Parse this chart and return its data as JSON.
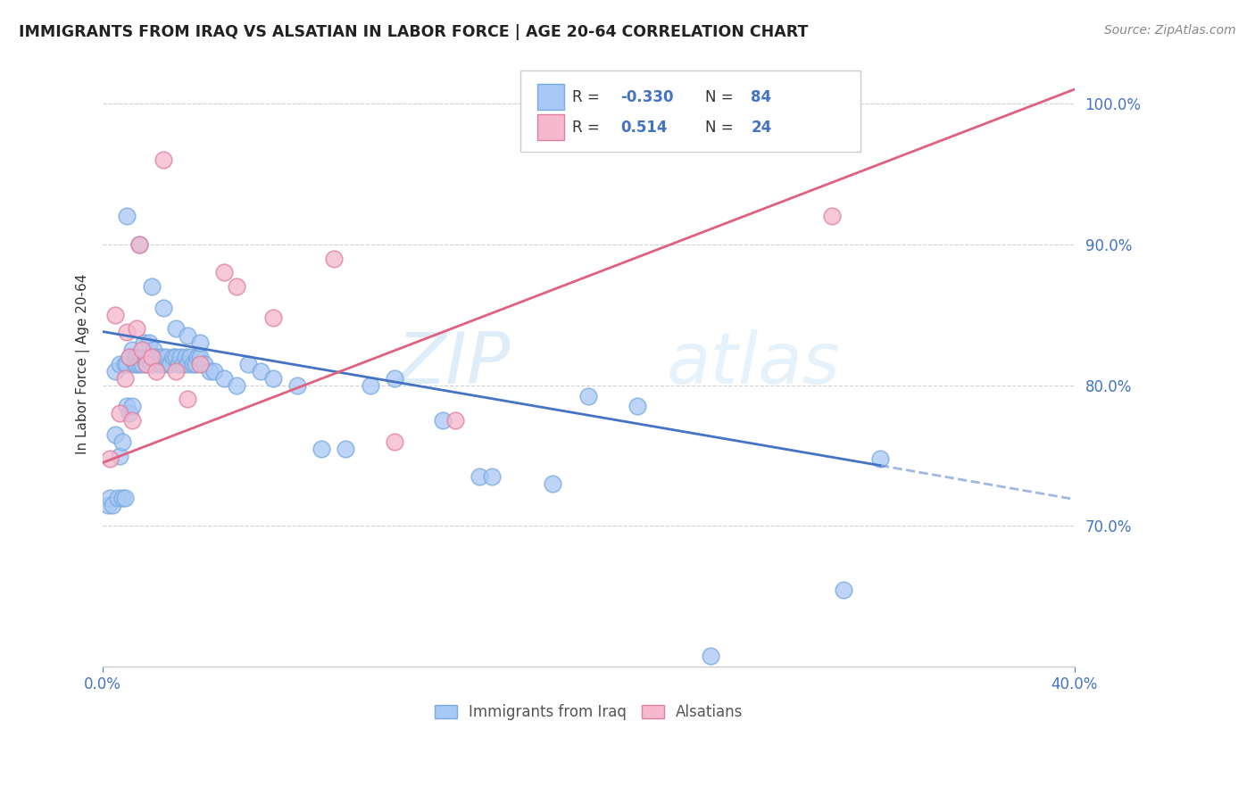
{
  "title": "IMMIGRANTS FROM IRAQ VS ALSATIAN IN LABOR FORCE | AGE 20-64 CORRELATION CHART",
  "source": "Source: ZipAtlas.com",
  "ylabel": "In Labor Force | Age 20-64",
  "xlim": [
    0.0,
    0.4
  ],
  "ylim": [
    0.6,
    1.03
  ],
  "yticks": [
    0.7,
    0.8,
    0.9,
    1.0
  ],
  "ytick_labels": [
    "70.0%",
    "80.0%",
    "90.0%",
    "100.0%"
  ],
  "xtick_left_label": "0.0%",
  "xtick_right_label": "40.0%",
  "iraq_color_fill": "#a8c8f5",
  "iraq_color_edge": "#7aaae0",
  "alsatian_color_fill": "#f5b8cc",
  "alsatian_color_edge": "#e080a0",
  "iraq_R": "-0.330",
  "iraq_N": "84",
  "alsatian_R": "0.514",
  "alsatian_N": "24",
  "watermark_zip": "ZIP",
  "watermark_atlas": "atlas",
  "iraq_scatter_x": [
    0.002,
    0.003,
    0.004,
    0.005,
    0.005,
    0.006,
    0.007,
    0.007,
    0.008,
    0.008,
    0.009,
    0.009,
    0.01,
    0.01,
    0.011,
    0.011,
    0.012,
    0.012,
    0.013,
    0.013,
    0.014,
    0.014,
    0.015,
    0.015,
    0.016,
    0.016,
    0.017,
    0.017,
    0.018,
    0.018,
    0.019,
    0.019,
    0.02,
    0.02,
    0.021,
    0.021,
    0.022,
    0.023,
    0.024,
    0.025,
    0.026,
    0.027,
    0.028,
    0.029,
    0.03,
    0.031,
    0.032,
    0.033,
    0.034,
    0.035,
    0.036,
    0.037,
    0.038,
    0.039,
    0.04,
    0.042,
    0.044,
    0.046,
    0.05,
    0.055,
    0.06,
    0.065,
    0.07,
    0.08,
    0.09,
    0.1,
    0.11,
    0.12,
    0.14,
    0.155,
    0.16,
    0.185,
    0.2,
    0.22,
    0.25,
    0.305,
    0.32,
    0.01,
    0.015,
    0.02,
    0.025,
    0.03,
    0.035,
    0.04
  ],
  "iraq_scatter_y": [
    0.715,
    0.72,
    0.715,
    0.765,
    0.81,
    0.72,
    0.75,
    0.815,
    0.72,
    0.76,
    0.815,
    0.72,
    0.785,
    0.815,
    0.78,
    0.82,
    0.785,
    0.825,
    0.815,
    0.82,
    0.815,
    0.82,
    0.82,
    0.815,
    0.82,
    0.815,
    0.82,
    0.83,
    0.82,
    0.815,
    0.82,
    0.83,
    0.82,
    0.815,
    0.82,
    0.825,
    0.82,
    0.815,
    0.82,
    0.815,
    0.82,
    0.815,
    0.815,
    0.82,
    0.82,
    0.815,
    0.82,
    0.815,
    0.82,
    0.815,
    0.82,
    0.815,
    0.815,
    0.82,
    0.82,
    0.815,
    0.81,
    0.81,
    0.805,
    0.8,
    0.815,
    0.81,
    0.805,
    0.8,
    0.755,
    0.755,
    0.8,
    0.805,
    0.775,
    0.735,
    0.735,
    0.73,
    0.792,
    0.785,
    0.608,
    0.655,
    0.748,
    0.92,
    0.9,
    0.87,
    0.855,
    0.84,
    0.835,
    0.83
  ],
  "alsatian_scatter_x": [
    0.003,
    0.005,
    0.007,
    0.009,
    0.01,
    0.011,
    0.012,
    0.014,
    0.015,
    0.016,
    0.018,
    0.02,
    0.022,
    0.025,
    0.03,
    0.035,
    0.04,
    0.05,
    0.055,
    0.07,
    0.095,
    0.12,
    0.145,
    0.3
  ],
  "alsatian_scatter_y": [
    0.748,
    0.85,
    0.78,
    0.805,
    0.838,
    0.82,
    0.775,
    0.84,
    0.9,
    0.825,
    0.815,
    0.82,
    0.81,
    0.96,
    0.81,
    0.79,
    0.815,
    0.88,
    0.87,
    0.848,
    0.89,
    0.76,
    0.775,
    0.92
  ],
  "iraq_line_x0": 0.0,
  "iraq_line_y0": 0.838,
  "iraq_line_x1": 0.32,
  "iraq_line_y1": 0.743,
  "iraq_line_dash_x0": 0.32,
  "iraq_line_dash_y0": 0.743,
  "iraq_line_dash_x1": 0.4,
  "iraq_line_dash_y1": 0.719,
  "alsatian_line_x0": 0.0,
  "alsatian_line_y0": 0.745,
  "alsatian_line_x1": 0.4,
  "alsatian_line_y1": 1.01,
  "line_iraq_color": "#4472c4",
  "line_alsatian_color": "#e06080",
  "background_color": "#ffffff",
  "grid_color": "#cccccc",
  "text_color_blue": "#4472c4",
  "text_color_dark": "#333333",
  "legend_iraq_label": "Immigrants from Iraq",
  "legend_alsatian_label": "Alsatians"
}
